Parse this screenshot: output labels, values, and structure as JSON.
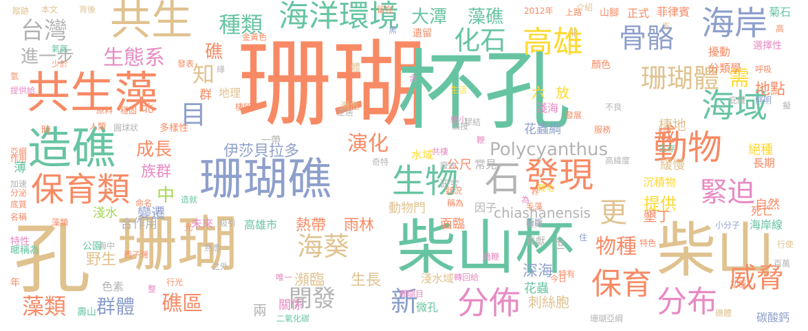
{
  "palette": {
    "orange": "#f78a64",
    "teal": "#67c4a2",
    "tan": "#e0c28f",
    "blue": "#8d9fcb",
    "pink": "#e78ac3",
    "lime": "#a6d854",
    "yellow": "#ffd92f",
    "grey": "#b3b3b3"
  },
  "words": [
    "珊瑚",
    "杯孔",
    "孔",
    "珊瑚",
    "柴山杯",
    "柴山",
    "共生藻",
    "造礁",
    "珊瑚礁",
    "共生",
    "海洋環境",
    "高雄",
    "骨骼",
    "海岸",
    "海域",
    "發現",
    "動物",
    "保育類",
    "石",
    "生物",
    "緊迫",
    "分佈",
    "分布",
    "保育",
    "威脅",
    "台灣",
    "進一步",
    "生態系",
    "化石",
    "種類",
    "大潭",
    "藻礁",
    "目",
    "珊瑚體",
    "演化",
    "伊莎貝拉多",
    "海葵",
    "開發",
    "新",
    "藻類",
    "群體",
    "礁區",
    "Polycyanthus",
    "chiashanensis",
    "物種",
    "提供",
    "更",
    "成長",
    "熱帶",
    "雨林",
    "野生",
    "棲地",
    "地點",
    "成",
    "需",
    "花蟲綱",
    "知",
    "六",
    "放",
    "中",
    "族群",
    "變遷",
    "深海",
    "淺海",
    "淺水域",
    "瀕臨",
    "生長",
    "刺絲胞",
    "地理",
    "群",
    "礁",
    "一帶",
    "公尺",
    "水域",
    "常見",
    "研究",
    "因子",
    "動物門",
    "面臨",
    "高雄市",
    "淺水",
    "合作用",
    "未來",
    "色素",
    "關係",
    "兩",
    "微孔",
    "花蟲",
    "長期",
    "沉積物",
    "緩慢",
    "絕種",
    "死亡",
    "自然",
    "墾丁",
    "海岸線",
    "分類學",
    "擾動",
    "選擇性",
    "菊石",
    "正式",
    "菲律賓",
    "顏色",
    "呼吸",
    "山腳",
    "世",
    "貢獻",
    "時",
    "人類",
    "多樣性",
    "北",
    "棲所",
    "原料",
    "穩固",
    "圓球狀",
    "蹤跡",
    "本文",
    "背後",
    "留在",
    "2012年",
    "上路",
    "介紹",
    "黑",
    "遺留",
    "氣氣",
    "少於",
    "金黃色",
    "氫",
    "提供給",
    "亞綱",
    "作用",
    "薄",
    "加速",
    "分泌",
    "底質",
    "名稱",
    "特性",
    "暱稱為",
    "年",
    "藻類",
    "公園",
    "海中",
    "西子灣",
    "壽山",
    "行光",
    "整",
    "之外",
    "熟悉",
    "唯一",
    "二氧化碳",
    "珊瑚目",
    "轉回給",
    "過鞭",
    "稱為",
    "細小",
    "膠結",
    "編按",
    "狀況",
    "廢物",
    "共棲",
    "奇特",
    "定居",
    "瀕危",
    "鞭",
    "今日",
    "特有",
    "功臣",
    "碳酸鈣",
    "礁體",
    "珊瑚亞綱",
    "百萬",
    "小分子",
    "行使",
    "特色",
    "住",
    "服務",
    "發展",
    "不良",
    "庇護",
    "擬",
    "鮮明",
    "生存",
    "高緯度",
    "毛藻",
    "新版",
    "體",
    "發表",
    "含",
    "生活",
    "綠",
    "變質",
    "命名",
    "光",
    "吸引",
    "造就",
    "為",
    "鞭毛",
    "界",
    "五",
    "高",
    "非"
  ]
}
